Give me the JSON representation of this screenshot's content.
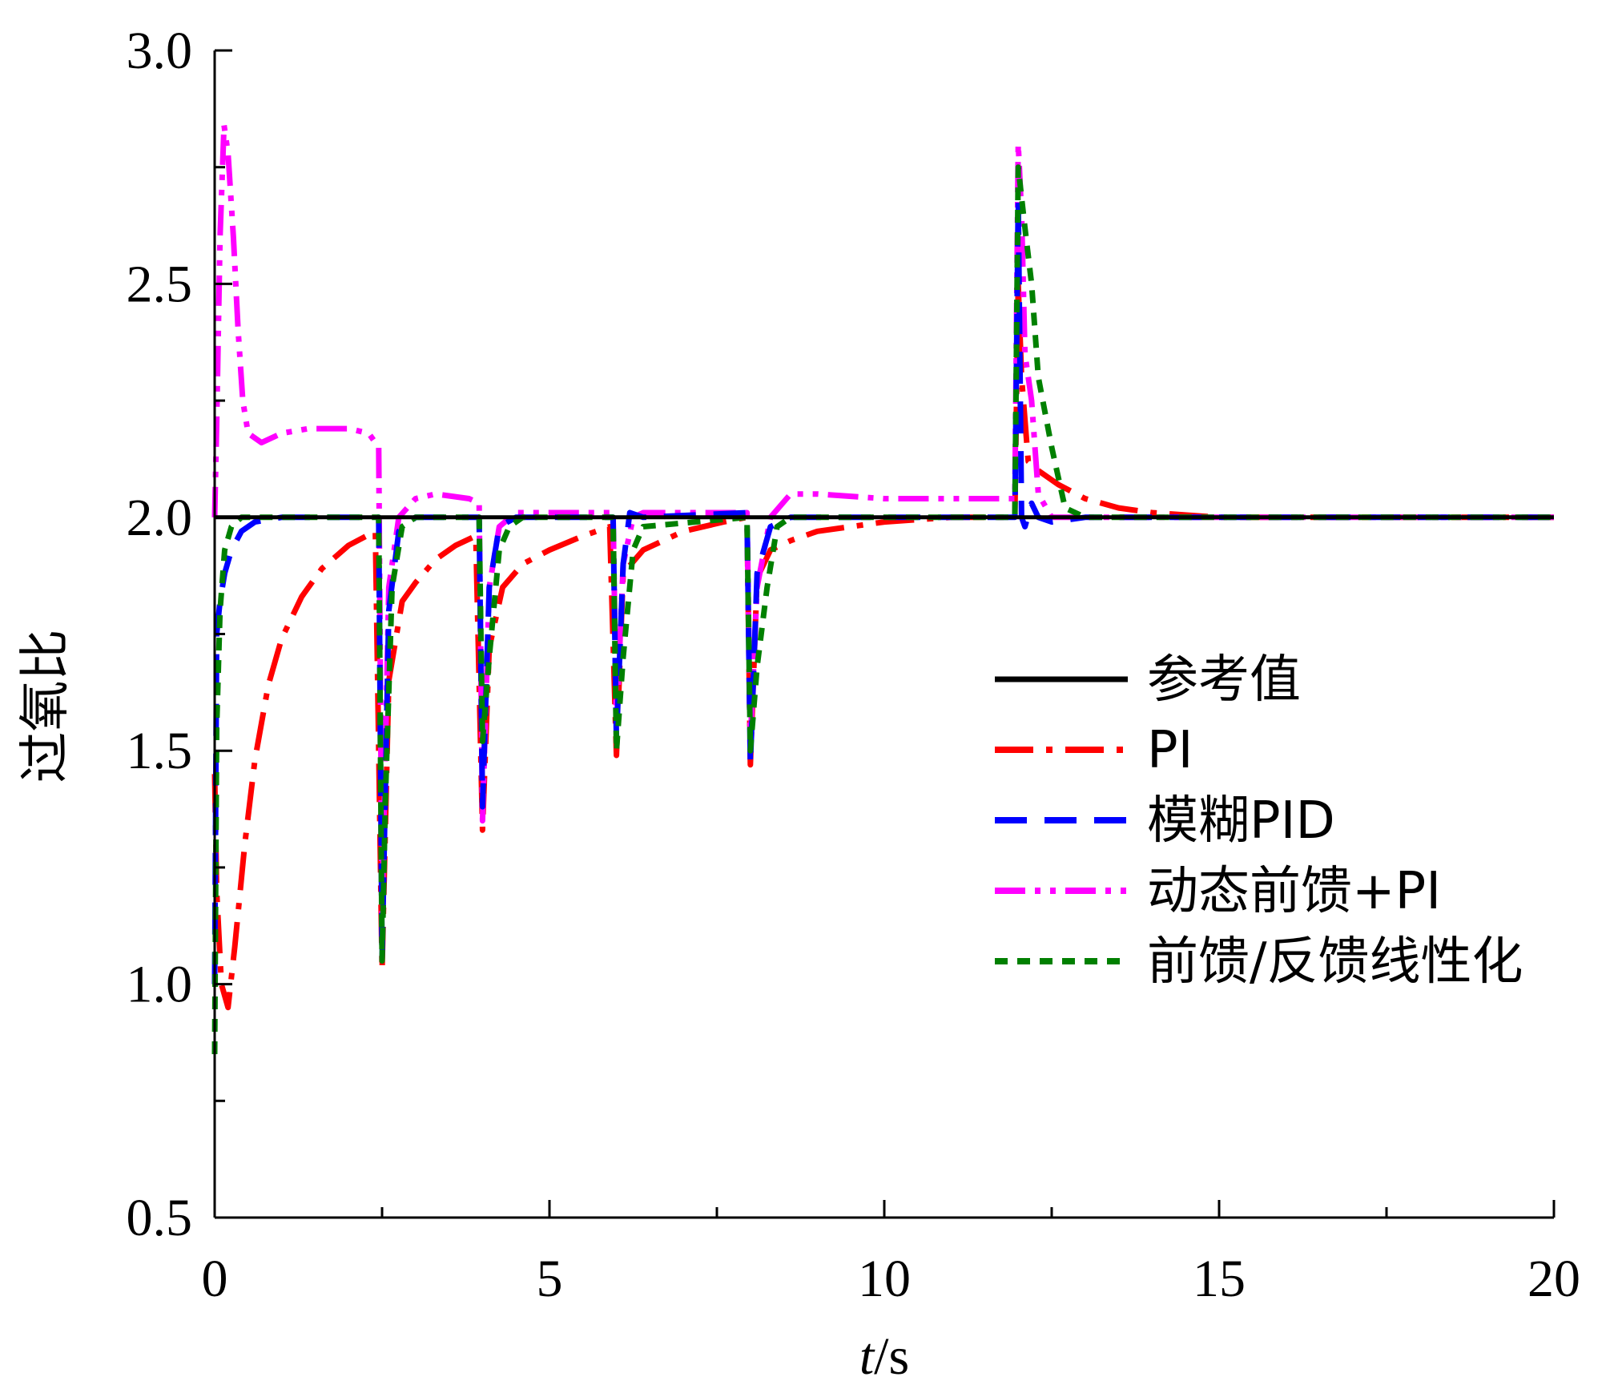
{
  "chart_data": {
    "type": "line",
    "title": "",
    "xlabel": {
      "italic": "t",
      "rest": "/s"
    },
    "ylabel": "过氧比",
    "xlim": [
      0,
      20
    ],
    "ylim": [
      0.5,
      3.0
    ],
    "xticks": [
      0,
      5,
      10,
      15,
      20
    ],
    "xtick_labels": [
      "0",
      "5",
      "10",
      "15",
      "20"
    ],
    "yticks": [
      0.5,
      1.0,
      1.5,
      2.0,
      2.5,
      3.0
    ],
    "ytick_labels": [
      "0.5",
      "1.0",
      "1.5",
      "2.0",
      "2.5",
      "3.0"
    ],
    "grid": false,
    "legend_position": "center-right",
    "series": [
      {
        "name": "参考值",
        "color": "#000000",
        "dash": "solid",
        "x": [
          0,
          20
        ],
        "y": [
          2.0,
          2.0
        ]
      },
      {
        "name": "PI",
        "color": "#ff0000",
        "dash": "dashdot",
        "x": [
          0,
          0.03,
          0.1,
          0.2,
          0.3,
          0.45,
          0.6,
          0.8,
          1.0,
          1.3,
          1.6,
          2.0,
          2.4,
          2.5,
          2.6,
          2.8,
          3.0,
          3.3,
          3.6,
          3.9,
          4.0,
          4.1,
          4.3,
          4.6,
          5.0,
          5.5,
          5.9,
          6.0,
          6.1,
          6.4,
          7.0,
          7.6,
          7.95,
          8.0,
          8.1,
          8.3,
          8.6,
          9.0,
          10.0,
          11.0,
          11.95,
          12.0,
          12.05,
          12.15,
          12.3,
          12.6,
          13.0,
          13.5,
          14.0,
          15.0,
          20.0
        ],
        "y": [
          1.45,
          1.2,
          1.0,
          0.95,
          1.08,
          1.3,
          1.48,
          1.64,
          1.74,
          1.83,
          1.89,
          1.94,
          1.97,
          1.03,
          1.65,
          1.82,
          1.86,
          1.91,
          1.94,
          1.96,
          1.33,
          1.72,
          1.85,
          1.9,
          1.93,
          1.96,
          1.98,
          1.49,
          1.88,
          1.93,
          1.97,
          1.99,
          2.0,
          1.47,
          1.87,
          1.93,
          1.95,
          1.97,
          1.99,
          2.0,
          2.0,
          2.5,
          2.3,
          2.12,
          2.1,
          2.07,
          2.04,
          2.02,
          2.01,
          2.0,
          2.0
        ]
      },
      {
        "name": "模糊PID",
        "color": "#0000ff",
        "dash": "dashed",
        "x": [
          0,
          0.03,
          0.08,
          0.15,
          0.25,
          0.4,
          0.6,
          1.0,
          2.45,
          2.5,
          2.6,
          2.75,
          3.0,
          3.95,
          4.0,
          4.1,
          4.25,
          4.5,
          5.95,
          6.0,
          6.1,
          6.2,
          6.4,
          7.95,
          8.0,
          8.1,
          8.3,
          8.6,
          11.95,
          12.0,
          12.05,
          12.1,
          12.2,
          12.3,
          12.5,
          13.0,
          20.0
        ],
        "y": [
          1.0,
          1.75,
          1.82,
          1.88,
          1.93,
          1.97,
          1.99,
          2.0,
          2.0,
          1.05,
          1.8,
          1.97,
          2.0,
          2.0,
          1.38,
          1.85,
          1.98,
          2.0,
          2.0,
          1.52,
          1.9,
          2.01,
          2.0,
          2.01,
          1.47,
          1.88,
          1.98,
          2.0,
          2.0,
          2.68,
          2.0,
          1.98,
          2.03,
          2.0,
          1.99,
          2.0,
          2.0
        ]
      },
      {
        "name": "动态前馈+PI",
        "color": "#ff00ff",
        "dash": "dashdotdot",
        "x": [
          0,
          0.03,
          0.08,
          0.14,
          0.2,
          0.28,
          0.35,
          0.42,
          0.5,
          0.7,
          1.0,
          1.4,
          2.0,
          2.3,
          2.45,
          2.5,
          2.6,
          2.75,
          3.0,
          3.3,
          3.8,
          3.95,
          4.0,
          4.1,
          4.25,
          4.5,
          5.0,
          5.95,
          6.0,
          6.1,
          6.25,
          6.4,
          7.0,
          7.95,
          8.0,
          8.1,
          8.3,
          8.6,
          9.0,
          10.0,
          11.0,
          11.5,
          11.95,
          12.0,
          12.05,
          12.1,
          12.2,
          12.3,
          12.5,
          13.0,
          20.0
        ],
        "y": [
          2.0,
          2.2,
          2.6,
          2.84,
          2.78,
          2.6,
          2.4,
          2.25,
          2.18,
          2.16,
          2.18,
          2.19,
          2.19,
          2.18,
          2.15,
          1.15,
          1.85,
          2.0,
          2.04,
          2.05,
          2.04,
          2.03,
          1.35,
          1.85,
          1.98,
          2.01,
          2.01,
          2.01,
          1.55,
          1.9,
          2.0,
          2.01,
          2.01,
          2.01,
          1.52,
          1.85,
          2.0,
          2.05,
          2.05,
          2.04,
          2.04,
          2.04,
          2.04,
          2.8,
          2.65,
          2.35,
          2.25,
          2.05,
          2.0,
          2.0,
          2.0
        ]
      },
      {
        "name": "前馈/反馈线性化",
        "color": "#008000",
        "dash": "dotted",
        "x": [
          0,
          0.03,
          0.08,
          0.15,
          0.25,
          0.4,
          0.6,
          1.0,
          2.45,
          2.5,
          2.55,
          2.65,
          2.8,
          3.0,
          3.95,
          4.0,
          4.1,
          4.25,
          4.4,
          4.6,
          5.95,
          6.0,
          6.1,
          6.25,
          6.4,
          7.95,
          8.0,
          8.1,
          8.25,
          8.4,
          8.6,
          11.95,
          12.0,
          12.1,
          12.2,
          12.3,
          12.5,
          12.7,
          13.0,
          20.0
        ],
        "y": [
          0.85,
          1.55,
          1.8,
          1.93,
          1.98,
          2.0,
          2.0,
          2.0,
          2.0,
          1.05,
          1.4,
          1.85,
          1.98,
          2.0,
          2.0,
          1.52,
          1.7,
          1.93,
          1.98,
          2.0,
          2.0,
          1.5,
          1.7,
          1.93,
          1.98,
          2.0,
          1.5,
          1.68,
          1.85,
          1.98,
          2.0,
          2.0,
          2.75,
          2.62,
          2.5,
          2.3,
          2.15,
          2.02,
          2.0,
          2.0
        ]
      }
    ]
  }
}
